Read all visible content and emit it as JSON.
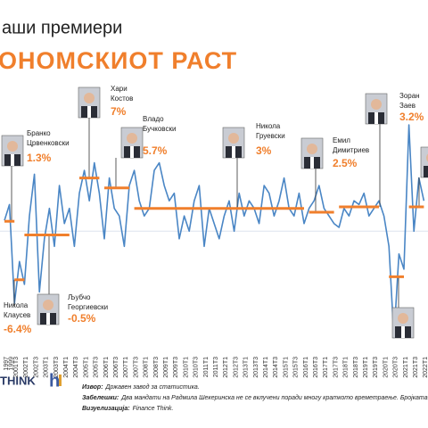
{
  "chart_data": {
    "type": "line",
    "title": "аши премиери",
    "subtitle": "ОНОМСКИОТ РАСТ",
    "categories": [
      "1997",
      "1999",
      "2001T3",
      null,
      "2002T1",
      null,
      "2002T3",
      null,
      "2003T1",
      null,
      "2003T3",
      null,
      "2004T1",
      null,
      "2004T3",
      null,
      "2005T1",
      null,
      "2005T3",
      null,
      "2006T1",
      null,
      "2006T3",
      null,
      "2007T1",
      null,
      "2007T3",
      null,
      "2008T1",
      null,
      "2008T3",
      null,
      "2009T1",
      null,
      "2009T3",
      null,
      "2010T1",
      null,
      "2010T3",
      null,
      "2011T1",
      null,
      "2011T3",
      null,
      "2012T1",
      null,
      "2012T3",
      null,
      "2013T1",
      null,
      "2013T3",
      null,
      "2014T1",
      null,
      "2014T3",
      null,
      "2015T1",
      null,
      "2015T3",
      null,
      "2016T1",
      null,
      "2016T3",
      null,
      "2017T1",
      null,
      "2017T3",
      null,
      "2018T1",
      null,
      "2018T3",
      null,
      "2019T1",
      null,
      "2019T3",
      null,
      "2020T1",
      null,
      "2020T3",
      null,
      "2021T1",
      null,
      "2021T3",
      null,
      "2022T1"
    ],
    "series": [
      {
        "color": "#4a86c5",
        "values": [
          1.4,
          3.5,
          -9.5,
          -4,
          -7,
          2,
          7.5,
          -8,
          -1,
          3,
          -2,
          6,
          1,
          3,
          -2,
          5,
          8,
          4,
          9,
          5,
          -1,
          7,
          3,
          2,
          -2,
          6,
          8,
          4,
          2,
          3,
          8,
          9,
          6,
          4,
          5,
          -1,
          2,
          0,
          4,
          6,
          -2,
          3,
          1,
          -1,
          2,
          4,
          0,
          5,
          2,
          4,
          3,
          1,
          6,
          5,
          2,
          4,
          7,
          3,
          2,
          5,
          1,
          3,
          4,
          6,
          3,
          2,
          1,
          0.5,
          3,
          2,
          4,
          3.5,
          5,
          2,
          3,
          4,
          2,
          -2,
          -14,
          -3,
          -5,
          14,
          0,
          7,
          4
        ]
      }
    ],
    "periods": [
      {
        "name": [
          "Бранко",
          "Црвенковски"
        ],
        "value": 1.3,
        "value_label": "1.3%",
        "start": 0,
        "end": 2,
        "color": "#f07f2c"
      },
      {
        "name": [
          "Никола",
          "Клаусев"
        ],
        "value": -6.4,
        "value_label": "-6.4%",
        "start": 2,
        "end": 4,
        "color": "#f07f2c"
      },
      {
        "name": [
          "Љубчо",
          "Георгиевски"
        ],
        "value": -0.5,
        "value_label": "-0.5%",
        "start": 4,
        "end": 13,
        "color": "#f07f2c"
      },
      {
        "name": [
          "Хари",
          "Костов"
        ],
        "value": 7,
        "value_label": "7%",
        "start": 15,
        "end": 19,
        "color": "#f07f2c"
      },
      {
        "name": [
          "Владо",
          "Бучковски"
        ],
        "value": 5.7,
        "value_label": "5.7%",
        "start": 20,
        "end": 25,
        "color": "#f07f2c"
      },
      {
        "name": [
          "Никола",
          "Груевски"
        ],
        "value": 3,
        "value_label": "3%",
        "start": 26,
        "end": 60,
        "color": "#f07f2c"
      },
      {
        "name": [
          "Емил",
          "Димитриев"
        ],
        "value": 2.5,
        "value_label": "2.5%",
        "start": 61,
        "end": 66,
        "color": "#f07f2c"
      },
      {
        "name": [
          "Зоран",
          "Заев"
        ],
        "value": 3.2,
        "value_label": "3.2%",
        "start": 67,
        "end": 75,
        "color": "#f07f2c"
      },
      {
        "value": -6,
        "start": 77,
        "end": 80,
        "color": "#f07f2c"
      },
      {
        "value": 3.2,
        "start": 81,
        "end": 84,
        "color": "#f07f2c"
      }
    ],
    "ylim": [
      -13,
      14
    ],
    "notes": [
      {
        "label": "Извор:",
        "text": "Државен завод за статистика."
      },
      {
        "label": "Забелешки:",
        "text": "Два мандати на Радмила Шекеринска не се вклучени поради многу краткото времетраење. Бројката за"
      },
      {
        "label": "Визуелизација:",
        "text": "Finance Think."
      }
    ],
    "logo": "THINK"
  }
}
